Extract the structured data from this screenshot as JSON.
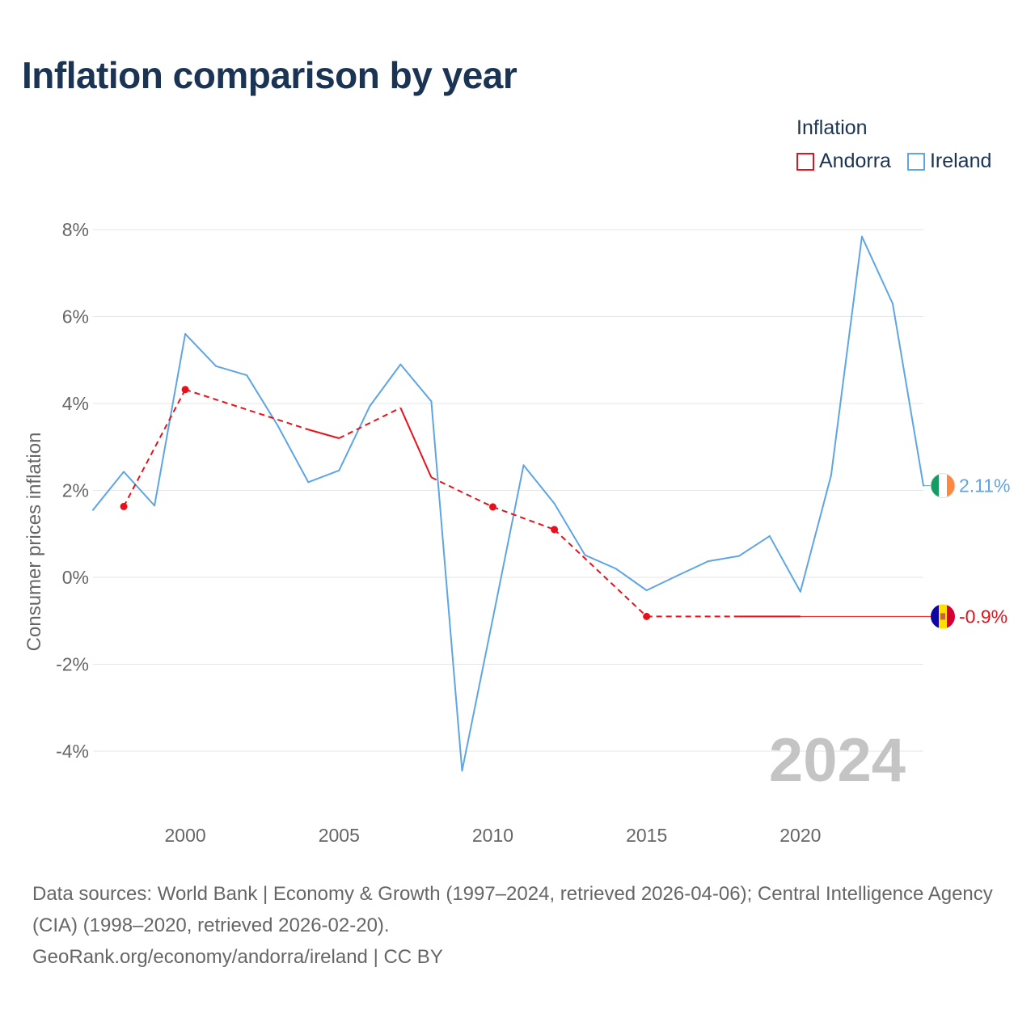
{
  "header": {
    "title": "Inflation comparison by year"
  },
  "legend": {
    "title": "Inflation",
    "items": [
      {
        "label": "Andorra",
        "color": "#e8101a"
      },
      {
        "label": "Ireland",
        "color": "#5ea5e4"
      }
    ]
  },
  "footer": {
    "sources": "Data sources: World Bank | Economy & Growth (1997–2024, retrieved 2026-04-06); Central Intelligence Agency (CIA) (1998–2020, retrieved 2026-02-20).",
    "credit": "GeoRank.org/economy/andorra/ireland | CC BY"
  },
  "chart_data": {
    "type": "line",
    "title": "Inflation comparison by year",
    "ylabel": "Consumer prices inflation",
    "xlabel": "",
    "xlim": [
      1997,
      2024
    ],
    "ylim": [
      -5,
      8.5
    ],
    "x_ticks": [
      2000,
      2005,
      2010,
      2015,
      2020
    ],
    "y_ticks": [
      {
        "value": 8,
        "label": "8%"
      },
      {
        "value": 6,
        "label": "6%"
      },
      {
        "value": 4,
        "label": "4%"
      },
      {
        "value": 2,
        "label": "2%"
      },
      {
        "value": 0,
        "label": "0%"
      },
      {
        "value": -2,
        "label": "-2%"
      },
      {
        "value": -4,
        "label": "-4%"
      }
    ],
    "watermark": "2024",
    "series": [
      {
        "name": "Ireland",
        "color": "#5ea5e4",
        "end_label": "2.11%",
        "flag": "ireland-flag",
        "points": [
          [
            1997,
            1.55
          ],
          [
            1998,
            2.43
          ],
          [
            1999,
            1.65
          ],
          [
            2000,
            5.6
          ],
          [
            2001,
            4.86
          ],
          [
            2002,
            4.65
          ],
          [
            2003,
            3.5
          ],
          [
            2004,
            2.19
          ],
          [
            2005,
            2.46
          ],
          [
            2006,
            3.94
          ],
          [
            2007,
            4.9
          ],
          [
            2008,
            4.05
          ],
          [
            2009,
            -4.45
          ],
          [
            2010,
            -0.95
          ],
          [
            2011,
            2.58
          ],
          [
            2012,
            1.7
          ],
          [
            2013,
            0.51
          ],
          [
            2014,
            0.2
          ],
          [
            2015,
            -0.3
          ],
          [
            2016,
            0.04
          ],
          [
            2017,
            0.37
          ],
          [
            2018,
            0.49
          ],
          [
            2019,
            0.95
          ],
          [
            2020,
            -0.33
          ],
          [
            2021,
            2.35
          ],
          [
            2022,
            7.84
          ],
          [
            2023,
            6.3
          ],
          [
            2024,
            2.11
          ]
        ]
      },
      {
        "name": "Andorra",
        "color": "#e8101a",
        "end_label": "-0.9%",
        "flag": "andorra-flag",
        "points": [
          [
            1998,
            1.63
          ],
          [
            2000,
            4.32
          ],
          [
            2004,
            3.4
          ],
          [
            2005,
            3.2
          ],
          [
            2007,
            3.9
          ],
          [
            2008,
            2.3
          ],
          [
            2010,
            1.62
          ],
          [
            2012,
            1.1
          ],
          [
            2015,
            -0.9
          ],
          [
            2018,
            -0.9
          ],
          [
            2020,
            -0.9
          ]
        ],
        "dashed_segments": [
          [
            1998,
            2000
          ],
          [
            2000,
            2004
          ],
          [
            2005,
            2007
          ],
          [
            2008,
            2010
          ],
          [
            2010,
            2012
          ],
          [
            2012,
            2015
          ],
          [
            2015,
            2018
          ]
        ],
        "dots": [
          1998,
          2000,
          2010,
          2012,
          2015
        ]
      }
    ]
  }
}
